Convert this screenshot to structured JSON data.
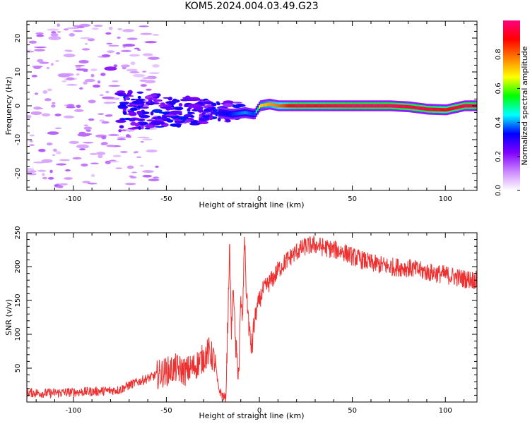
{
  "title": "KOM5.2024.004.03.49.G23",
  "chart_data": [
    {
      "type": "heatmap",
      "xlabel": "Height of straight line (km)",
      "ylabel": "Frequency (Hz)",
      "xlim": [
        -125,
        117
      ],
      "ylim": [
        -25,
        25
      ],
      "x_ticks": [
        -100,
        -50,
        0,
        50,
        100
      ],
      "y_ticks": [
        -20,
        -10,
        0,
        10,
        20
      ],
      "colorbar": {
        "label": "Normalized spectral amplitude",
        "range": [
          0,
          1
        ],
        "ticks": [
          0.0,
          0.2,
          0.4,
          0.6,
          0.8
        ],
        "colormap": [
          "#ffffff",
          "#cc88ff",
          "#8000ff",
          "#0000ff",
          "#00ffff",
          "#00ff00",
          "#ffff00",
          "#ff8000",
          "#ff0000",
          "#ff0080"
        ]
      },
      "ridge": {
        "x": [
          -22,
          -15,
          -8,
          -3,
          0,
          5,
          10,
          20,
          30,
          40,
          50,
          60,
          70,
          80,
          90,
          100,
          110,
          117
        ],
        "frequency": [
          -2,
          -2.5,
          -2,
          -2.5,
          0,
          0.5,
          0,
          0,
          0,
          0,
          0,
          0,
          0,
          -0.3,
          -1,
          -1.2,
          0,
          0
        ],
        "amplitude": [
          0.3,
          0.35,
          0.4,
          0.35,
          0.7,
          0.75,
          0.8,
          0.95,
          0.92,
          0.95,
          0.98,
          0.98,
          0.97,
          0.95,
          0.95,
          0.9,
          0.95,
          0.98
        ]
      },
      "patches": [
        {
          "x": -110,
          "frequency": 20,
          "amplitude": 0.08
        },
        {
          "x": -105,
          "frequency": 9,
          "amplitude": 0.1
        },
        {
          "x": -95,
          "frequency": -12,
          "amplitude": 0.08
        },
        {
          "x": -80,
          "frequency": 11,
          "amplitude": 0.2
        },
        {
          "x": -65,
          "frequency": 1,
          "amplitude": 0.3
        },
        {
          "x": -55,
          "frequency": -5,
          "amplitude": 0.28
        },
        {
          "x": -45,
          "frequency": -2,
          "amplitude": 0.25
        },
        {
          "x": -35,
          "frequency": 0,
          "amplitude": 0.22
        }
      ]
    },
    {
      "type": "line",
      "xlabel": "Height of straight line (km)",
      "ylabel": "SNR (v/v)",
      "xlim": [
        -125,
        117
      ],
      "ylim": [
        0,
        250
      ],
      "x_ticks": [
        -100,
        -50,
        0,
        50,
        100
      ],
      "y_ticks": [
        50,
        100,
        150,
        200,
        250
      ],
      "color": "#ee3030",
      "series": [
        {
          "x": [
            -125,
            -115,
            -105,
            -95,
            -85,
            -75,
            -70,
            -65,
            -60,
            -55,
            -50,
            -45,
            -40,
            -35,
            -30,
            -27,
            -24,
            -22,
            -20,
            -18,
            -16,
            -15,
            -14,
            -13,
            -12,
            -11,
            -10,
            -9,
            -8,
            -7,
            -6,
            -5,
            -4,
            -3,
            -2,
            0,
            2,
            5,
            8,
            10,
            15,
            20,
            25,
            30,
            35,
            40,
            45,
            50,
            55,
            60,
            70,
            80,
            90,
            100,
            110,
            117
          ],
          "y": [
            14,
            13,
            14,
            15,
            16,
            18,
            25,
            30,
            35,
            40,
            45,
            50,
            45,
            52,
            65,
            75,
            60,
            20,
            10,
            5,
            230,
            100,
            180,
            90,
            60,
            45,
            150,
            120,
            250,
            160,
            130,
            90,
            80,
            110,
            130,
            150,
            165,
            175,
            185,
            195,
            210,
            222,
            230,
            232,
            228,
            225,
            222,
            215,
            210,
            205,
            200,
            198,
            192,
            188,
            182,
            180
          ]
        }
      ]
    }
  ]
}
